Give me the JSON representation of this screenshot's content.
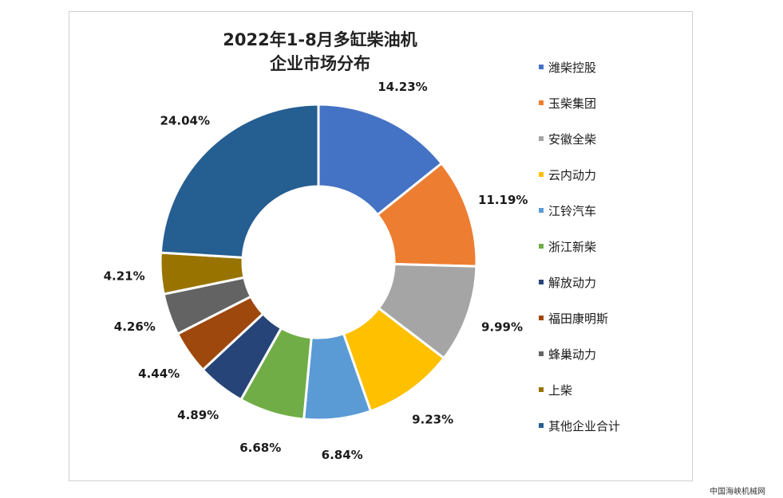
{
  "chart_data": {
    "type": "pie",
    "donut": true,
    "title_lines": [
      "2022年1-8月多缸柴油机",
      "企业市场分布"
    ],
    "legend_position": "right",
    "slices": [
      {
        "name": "潍柴控股",
        "value": 14.23,
        "label": "14.23%",
        "color": "#4472c4"
      },
      {
        "name": "玉柴集团",
        "value": 11.19,
        "label": "11.19%",
        "color": "#ed7d31"
      },
      {
        "name": "安徽全柴",
        "value": 9.99,
        "label": "9.99%",
        "color": "#a5a5a5"
      },
      {
        "name": "云内动力",
        "value": 9.23,
        "label": "9.23%",
        "color": "#ffc000"
      },
      {
        "name": "江铃汽车",
        "value": 6.84,
        "label": "6.84%",
        "color": "#5b9bd5"
      },
      {
        "name": "浙江新柴",
        "value": 6.68,
        "label": "6.68%",
        "color": "#70ad47"
      },
      {
        "name": "解放动力",
        "value": 4.89,
        "label": "4.89%",
        "color": "#264478"
      },
      {
        "name": "福田康明斯",
        "value": 4.44,
        "label": "4.44%",
        "color": "#9e480e"
      },
      {
        "name": "蜂巢动力",
        "value": 4.26,
        "label": "4.26%",
        "color": "#636363"
      },
      {
        "name": "上柴",
        "value": 4.21,
        "label": "4.21%",
        "color": "#997300"
      },
      {
        "name": "其他企业合计",
        "value": 24.04,
        "label": "24.04%",
        "color": "#255e91"
      }
    ]
  },
  "watermark": "中国海峡机械网"
}
